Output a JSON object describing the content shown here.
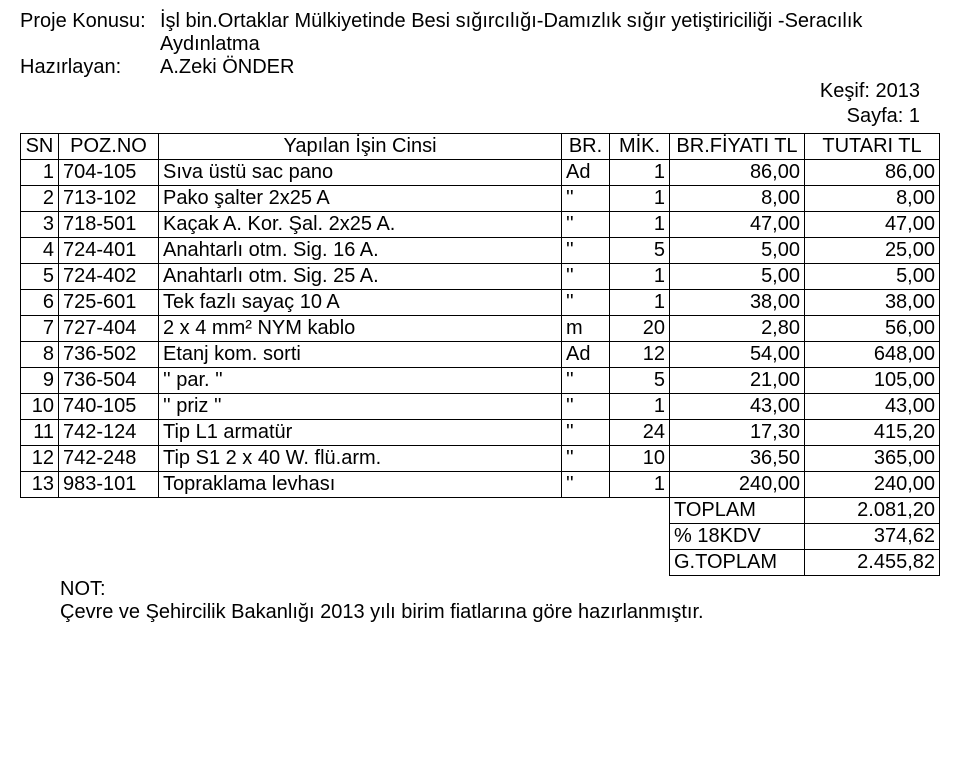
{
  "header": {
    "subject_label": "Proje Konusu:",
    "subject_value": "İşl bin.Ortaklar Mülkiyetinde Besi sığırcılığı-Damızlık sığır yetiştiriciliği -Seracılık  Aydınlatma",
    "prepared_label": "Hazırlayan:",
    "prepared_value": "A.Zeki ÖNDER",
    "kesif": "Keşif: 2013",
    "sayfa": "Sayfa: 1"
  },
  "columns": {
    "sn": "SN",
    "poz": "POZ.NO",
    "cinsi": "Yapılan İşin Cinsi",
    "br": "BR.",
    "mik": "MİK.",
    "fiyat": "BR.FİYATI TL",
    "tutar": "TUTARI TL"
  },
  "rows": [
    {
      "sn": "1",
      "poz": "704-105",
      "cin": "Sıva üstü sac pano",
      "br": "Ad",
      "mik": "1",
      "fi": "86,00",
      "tu": "86,00"
    },
    {
      "sn": "2",
      "poz": "713-102",
      "cin": "Pako şalter 2x25 A",
      "br": "''",
      "mik": "1",
      "fi": "8,00",
      "tu": "8,00"
    },
    {
      "sn": "3",
      "poz": "718-501",
      "cin": "Kaçak A. Kor. Şal. 2x25 A.",
      "br": "''",
      "mik": "1",
      "fi": "47,00",
      "tu": "47,00"
    },
    {
      "sn": "4",
      "poz": "724-401",
      "cin": "Anahtarlı otm. Sig. 16 A.",
      "br": "''",
      "mik": "5",
      "fi": "5,00",
      "tu": "25,00"
    },
    {
      "sn": "5",
      "poz": "724-402",
      "cin": "Anahtarlı otm. Sig. 25 A.",
      "br": "''",
      "mik": "1",
      "fi": "5,00",
      "tu": "5,00"
    },
    {
      "sn": "6",
      "poz": "725-601",
      "cin": "Tek fazlı sayaç 10 A",
      "br": "''",
      "mik": "1",
      "fi": "38,00",
      "tu": "38,00"
    },
    {
      "sn": "7",
      "poz": "727-404",
      "cin": "2 x 4 mm² NYM kablo",
      "br": "m",
      "mik": "20",
      "fi": "2,80",
      "tu": "56,00"
    },
    {
      "sn": "8",
      "poz": "736-502",
      "cin": "Etanj kom. sorti",
      "br": "Ad",
      "mik": "12",
      "fi": "54,00",
      "tu": "648,00"
    },
    {
      "sn": "9",
      "poz": "736-504",
      "cin": "   ''    par.    ''",
      "br": "''",
      "mik": "5",
      "fi": "21,00",
      "tu": "105,00"
    },
    {
      "sn": "10",
      "poz": "740-105",
      "cin": "   ''    priz    ''",
      "br": "''",
      "mik": "1",
      "fi": "43,00",
      "tu": "43,00"
    },
    {
      "sn": "11",
      "poz": "742-124",
      "cin": "Tip L1 armatür",
      "br": "''",
      "mik": "24",
      "fi": "17,30",
      "tu": "415,20"
    },
    {
      "sn": "12",
      "poz": "742-248",
      "cin": "Tip S1  2 x 40 W. flü.arm.",
      "br": "''",
      "mik": "10",
      "fi": "36,50",
      "tu": "365,00"
    },
    {
      "sn": "13",
      "poz": "983-101",
      "cin": "Topraklama levhası",
      "br": "''",
      "mik": "1",
      "fi": "240,00",
      "tu": "240,00"
    }
  ],
  "totals": [
    {
      "label": "TOPLAM",
      "value": "2.081,20"
    },
    {
      "label": "% 18KDV",
      "value": "374,62"
    },
    {
      "label": "G.TOPLAM",
      "value": "2.455,82"
    }
  ],
  "note": {
    "label": "NOT:",
    "text": "Çevre ve Şehircilik Bakanlığı 2013 yılı birim fiatlarına göre hazırlanmıştır."
  }
}
